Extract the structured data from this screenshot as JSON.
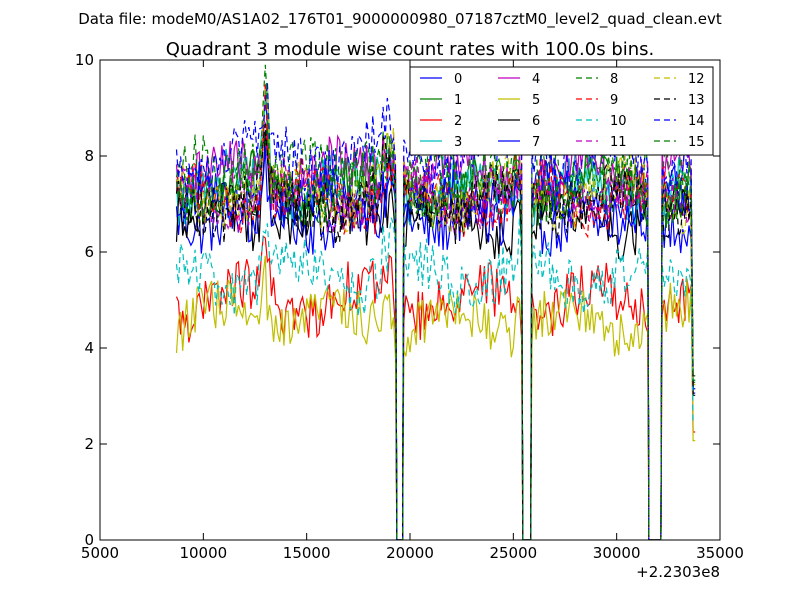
{
  "header": {
    "suptitle": "Data file: modeM0/AS1A02_176T01_9000000980_07187cztM0_level2_quad_clean.evt"
  },
  "chart_data": {
    "type": "line",
    "title": "Quadrant 3 module wise count rates with 100.0s bins.",
    "xlabel": "",
    "ylabel": "",
    "x_offset_label": "+2.2303e8",
    "xlim": [
      5000,
      35000
    ],
    "ylim": [
      0,
      10
    ],
    "xticks": [
      5000,
      10000,
      15000,
      20000,
      25000,
      30000,
      35000
    ],
    "yticks": [
      0,
      2,
      4,
      6,
      8,
      10
    ],
    "grid": false,
    "legend_position": "top-right",
    "segments": [
      [
        8700,
        19300
      ],
      [
        19700,
        25400
      ],
      [
        25900,
        31500
      ],
      [
        32200,
        33800
      ]
    ],
    "series": [
      {
        "name": "0",
        "color": "#0000ff",
        "dash": "solid",
        "level": 6.8
      },
      {
        "name": "1",
        "color": "#008000",
        "dash": "solid",
        "level": 7.3
      },
      {
        "name": "2",
        "color": "#ff0000",
        "dash": "solid",
        "level": 5.0
      },
      {
        "name": "3",
        "color": "#00bfbf",
        "dash": "solid",
        "level": 7.4
      },
      {
        "name": "4",
        "color": "#bf00bf",
        "dash": "solid",
        "level": 7.6
      },
      {
        "name": "5",
        "color": "#bfbf00",
        "dash": "solid",
        "level": 4.6
      },
      {
        "name": "6",
        "color": "#000000",
        "dash": "solid",
        "level": 6.7
      },
      {
        "name": "7",
        "color": "#0000ff",
        "dash": "solid",
        "level": 7.0
      },
      {
        "name": "8",
        "color": "#008000",
        "dash": "dashed",
        "level": 7.6
      },
      {
        "name": "9",
        "color": "#ff0000",
        "dash": "dashed",
        "level": 7.1
      },
      {
        "name": "10",
        "color": "#00bfbf",
        "dash": "dashed",
        "level": 5.5
      },
      {
        "name": "11",
        "color": "#bf00bf",
        "dash": "dashed",
        "level": 7.2
      },
      {
        "name": "12",
        "color": "#bfbf00",
        "dash": "dashed",
        "level": 7.2
      },
      {
        "name": "13",
        "color": "#000000",
        "dash": "dashed",
        "level": 7.0
      },
      {
        "name": "14",
        "color": "#0000ff",
        "dash": "dashed",
        "level": 8.0
      },
      {
        "name": "15",
        "color": "#008000",
        "dash": "dashed",
        "level": 7.4
      }
    ]
  }
}
